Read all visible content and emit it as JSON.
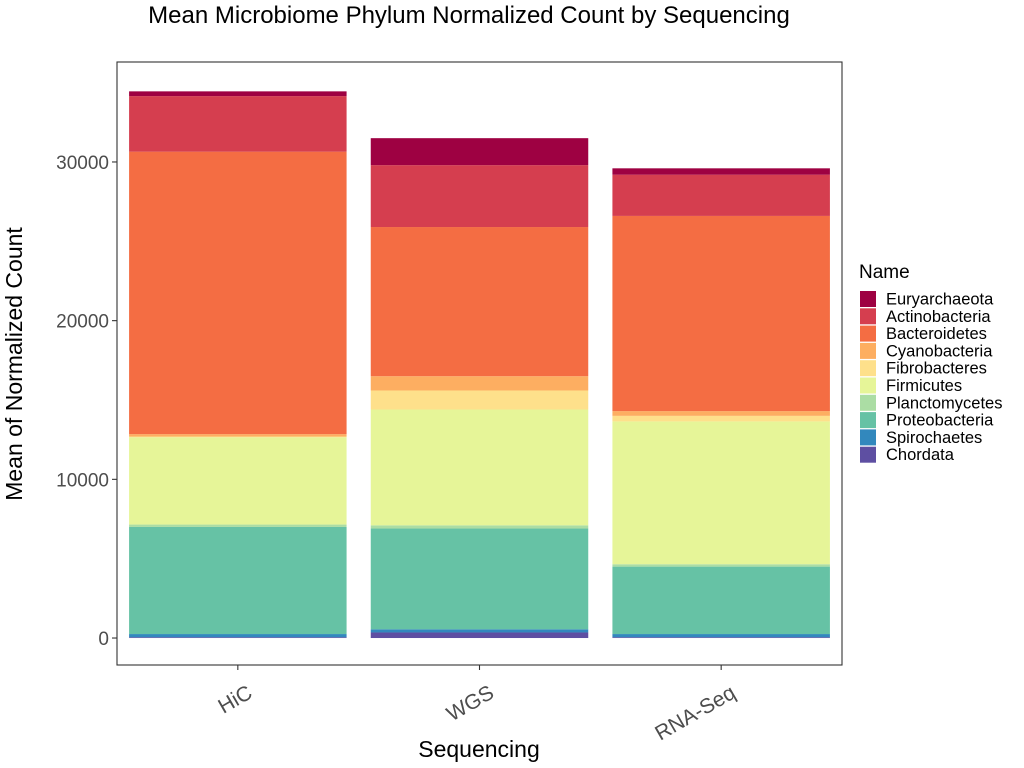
{
  "chart_data": {
    "type": "bar",
    "stacked": true,
    "title": "Mean Microbiome Phylum Normalized Count by Sequencing",
    "xlabel": "Sequencing",
    "ylabel": "Mean of Normalized Count",
    "categories": [
      "HiC",
      "WGS",
      "RNA-Seq"
    ],
    "yticks": [
      "0",
      "10000",
      "20000",
      "30000"
    ],
    "ytick_values": [
      0,
      10000,
      20000,
      30000
    ],
    "ylim": [
      -1700,
      36300
    ],
    "legend_title": "Name",
    "legend_position": "right",
    "grid": false,
    "series": [
      {
        "name": "Chordata",
        "color": "#5e4fa2",
        "values": [
          50,
          350,
          50
        ]
      },
      {
        "name": "Spirochaetes",
        "color": "#3288bd",
        "values": [
          200,
          200,
          200
        ]
      },
      {
        "name": "Proteobacteria",
        "color": "#66c2a5",
        "values": [
          6750,
          6350,
          4250
        ]
      },
      {
        "name": "Planctomycetes",
        "color": "#abdda4",
        "values": [
          150,
          200,
          150
        ]
      },
      {
        "name": "Firmicutes",
        "color": "#e6f598",
        "values": [
          5500,
          7300,
          9000
        ]
      },
      {
        "name": "Fibrobacteres",
        "color": "#fee08b",
        "values": [
          50,
          1200,
          350
        ]
      },
      {
        "name": "Cyanobacteria",
        "color": "#fdae61",
        "values": [
          150,
          900,
          300
        ]
      },
      {
        "name": "Bacteroidetes",
        "color": "#f46d43",
        "values": [
          17800,
          9400,
          12300
        ]
      },
      {
        "name": "Actinobacteria",
        "color": "#d53e4f",
        "values": [
          3500,
          3900,
          2600
        ]
      },
      {
        "name": "Euryarchaeota",
        "color": "#9e0142",
        "values": [
          300,
          1700,
          400
        ]
      }
    ]
  }
}
